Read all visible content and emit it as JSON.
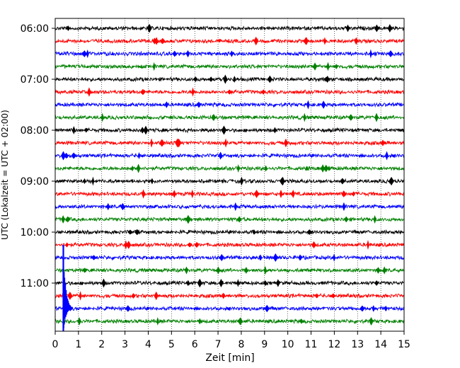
{
  "chart_data": {
    "type": "line",
    "subtype": "seismogram-helicorder",
    "xlabel": "Zeit  [min]",
    "ylabel": "UTC (Lokalzeit = UTC + 02:00)",
    "xlim": [
      0,
      15
    ],
    "x_ticks": [
      0,
      1,
      2,
      3,
      4,
      5,
      6,
      7,
      8,
      9,
      10,
      11,
      12,
      13,
      14,
      15
    ],
    "x_tick_labels": [
      "0",
      "1",
      "2",
      "3",
      "4",
      "5",
      "6",
      "7",
      "8",
      "9",
      "10",
      "11",
      "12",
      "13",
      "14",
      "15"
    ],
    "y_tick_labels": [
      "06:00",
      "07:00",
      "08:00",
      "09:00",
      "10:00",
      "11:00"
    ],
    "vertical_grid": true,
    "grid_style": "dotted",
    "trace_interval_minutes": 15,
    "trace_colors": [
      "#000000",
      "#ff0000",
      "#0000ff",
      "#008000"
    ],
    "traces": [
      {
        "start": "06:00",
        "color": "#000000"
      },
      {
        "start": "06:15",
        "color": "#ff0000"
      },
      {
        "start": "06:30",
        "color": "#0000ff"
      },
      {
        "start": "06:45",
        "color": "#008000"
      },
      {
        "start": "07:00",
        "color": "#000000"
      },
      {
        "start": "07:15",
        "color": "#ff0000"
      },
      {
        "start": "07:30",
        "color": "#0000ff"
      },
      {
        "start": "07:45",
        "color": "#008000"
      },
      {
        "start": "08:00",
        "color": "#000000"
      },
      {
        "start": "08:15",
        "color": "#ff0000"
      },
      {
        "start": "08:30",
        "color": "#0000ff"
      },
      {
        "start": "08:45",
        "color": "#008000"
      },
      {
        "start": "09:00",
        "color": "#000000"
      },
      {
        "start": "09:15",
        "color": "#ff0000"
      },
      {
        "start": "09:30",
        "color": "#0000ff"
      },
      {
        "start": "09:45",
        "color": "#008000"
      },
      {
        "start": "10:00",
        "color": "#000000"
      },
      {
        "start": "10:15",
        "color": "#ff0000"
      },
      {
        "start": "10:30",
        "color": "#0000ff"
      },
      {
        "start": "10:45",
        "color": "#008000"
      },
      {
        "start": "11:00",
        "color": "#000000"
      },
      {
        "start": "11:15",
        "color": "#ff0000"
      },
      {
        "start": "11:30",
        "color": "#0000ff",
        "event": {
          "x_min": 0.35
        }
      },
      {
        "start": "11:45",
        "color": "#008000"
      }
    ]
  }
}
